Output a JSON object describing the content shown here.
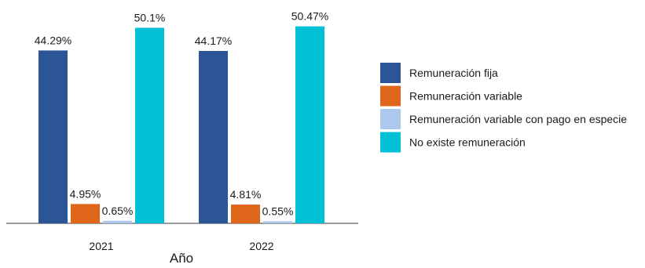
{
  "chart_data": {
    "type": "bar",
    "categories": [
      "2021",
      "2022"
    ],
    "xlabel": "Año",
    "ylabel": "",
    "ylim": [
      0,
      51
    ],
    "grid": false,
    "legend_position": "right",
    "series": [
      {
        "name": "Remuneración fija",
        "color": "#2c5597",
        "values": [
          44.29,
          44.17
        ],
        "labels": [
          "44.29%",
          "44.17%"
        ]
      },
      {
        "name": "Remuneración variable",
        "color": "#e0661c",
        "values": [
          4.95,
          4.81
        ],
        "labels": [
          "4.95%",
          "4.81%"
        ]
      },
      {
        "name": "Remuneración variable con pago en especie",
        "color": "#aec7ec",
        "values": [
          0.65,
          0.55
        ],
        "labels": [
          "0.65%",
          "0.55%"
        ]
      },
      {
        "name": "No existe remuneración",
        "color": "#00c0d6",
        "values": [
          50.1,
          50.47
        ],
        "labels": [
          "50.1%",
          "50.47%"
        ]
      }
    ]
  }
}
